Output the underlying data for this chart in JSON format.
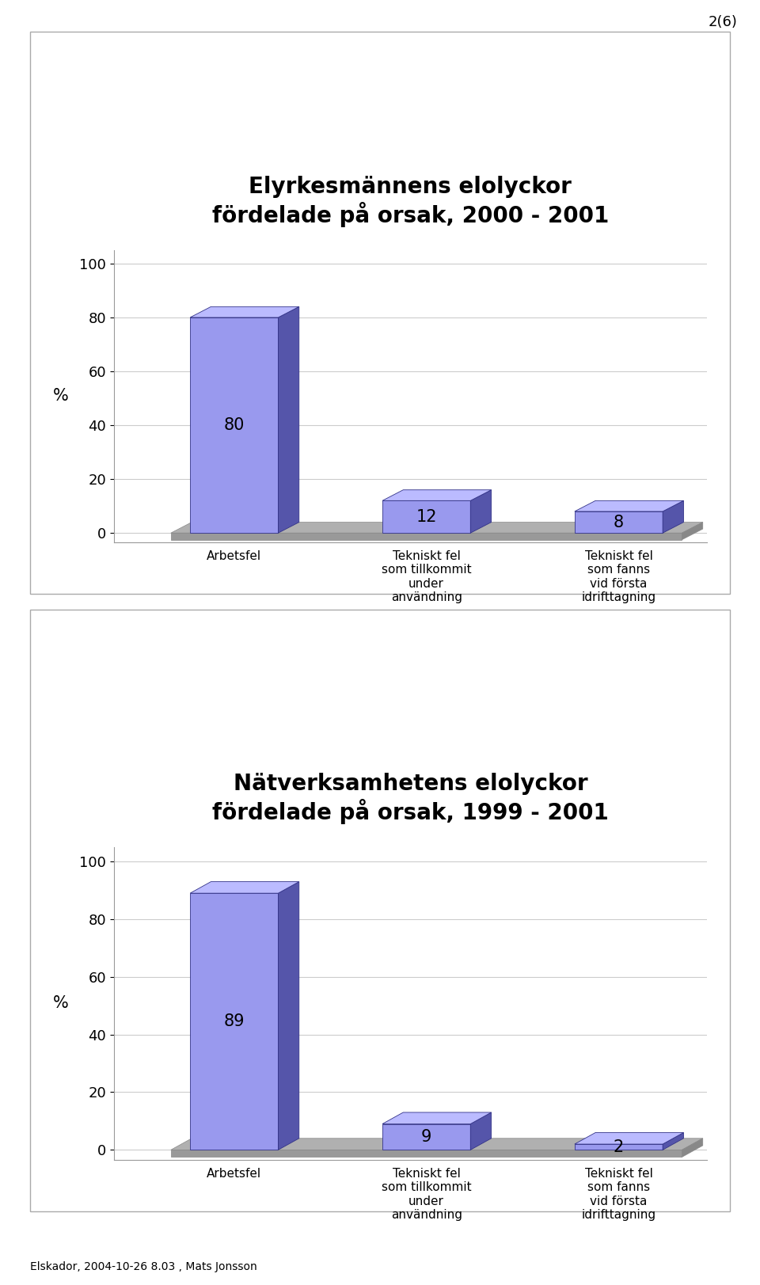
{
  "chart1": {
    "title": "Elyrkesmännens elolyckor\nfördelade på orsak, 2000 - 2001",
    "categories": [
      "Arbetsfel",
      "Tekniskt fel\nsom tillkommit\nunder\nanvändning",
      "Tekniskt fel\nsom fanns\nvid första\nidrifttagning"
    ],
    "values": [
      80,
      12,
      8
    ],
    "ylabel": "%",
    "ylim": [
      0,
      100
    ],
    "yticks": [
      0,
      20,
      40,
      60,
      80,
      100
    ],
    "bar_face_color": "#9999ee",
    "bar_top_color": "#bbbbff",
    "bar_side_color": "#5555aa",
    "bar_edge_color": "#333388",
    "bar_width": 0.55,
    "value_label_color": "#000000",
    "value_label_fontsize": 15,
    "title_fontsize": 20,
    "tick_fontsize": 13,
    "xlabel_fontsize": 11
  },
  "chart2": {
    "title": "Nätverksamhetens elolyckor\nfördelade på orsak, 1999 - 2001",
    "categories": [
      "Arbetsfel",
      "Tekniskt fel\nsom tillkommit\nunder\nanvändning",
      "Tekniskt fel\nsom fanns\nvid första\nidrifttagning"
    ],
    "values": [
      89,
      9,
      2
    ],
    "ylabel": "%",
    "ylim": [
      0,
      100
    ],
    "yticks": [
      0,
      20,
      40,
      60,
      80,
      100
    ],
    "bar_face_color": "#9999ee",
    "bar_top_color": "#bbbbff",
    "bar_side_color": "#5555aa",
    "bar_edge_color": "#333388",
    "bar_width": 0.55,
    "value_label_color": "#000000",
    "value_label_fontsize": 15,
    "title_fontsize": 20,
    "tick_fontsize": 13,
    "xlabel_fontsize": 11
  },
  "page_label": "2(6)",
  "footer": "Elskador, 2004-10-26 8.03 , Mats Jonsson",
  "bg_color": "#ffffff",
  "panel_bg_color": "#ffffff",
  "panel_border_color": "#aaaaaa",
  "floor_color": "#aaaaaa",
  "floor_top_color": "#bbbbbb"
}
